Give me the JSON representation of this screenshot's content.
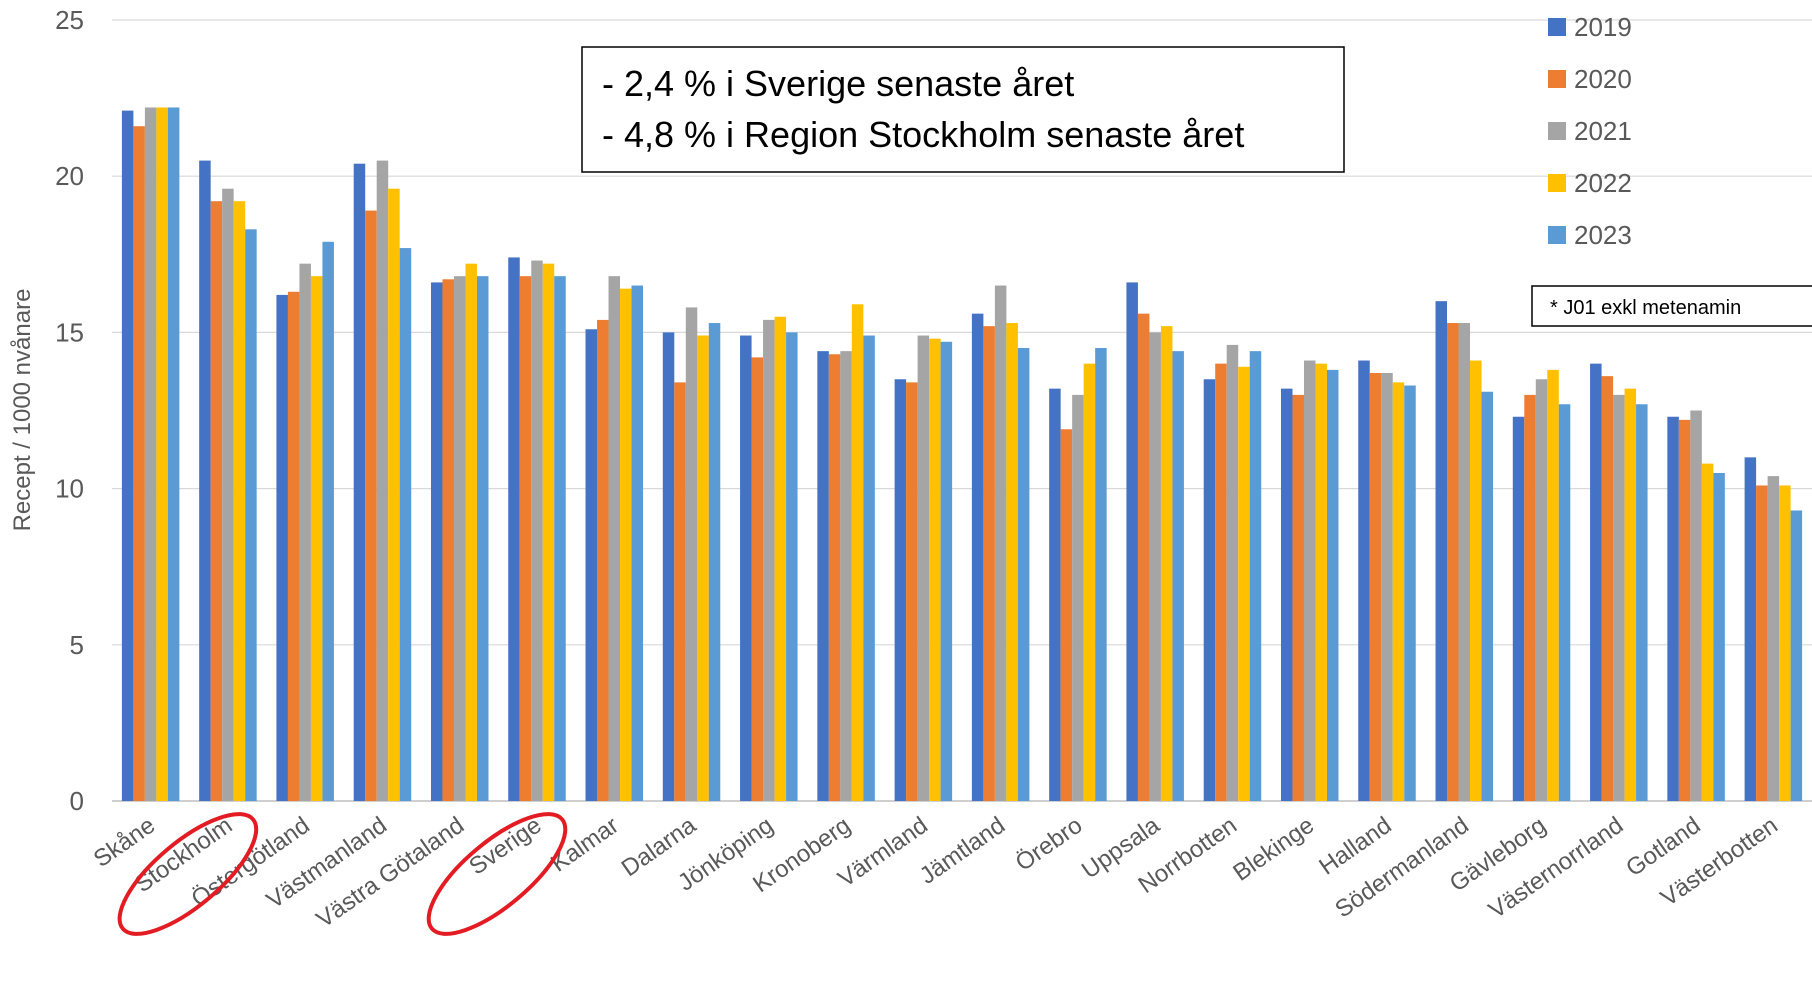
{
  "chart_data": {
    "type": "bar",
    "ylabel": "Recept / 1000 nvånare",
    "ylim": [
      0,
      25
    ],
    "yticks": [
      "0",
      "5",
      "10",
      "15",
      "20",
      "25"
    ],
    "grid": true,
    "legend_position": "top-right",
    "categories": [
      "Skåne",
      "Stockholm",
      "Östergötland",
      "Västmanland",
      "Västra Götaland",
      "Sverige",
      "Kalmar",
      "Dalarna",
      "Jönköping",
      "Kronoberg",
      "Värmland",
      "Jämtland",
      "Örebro",
      "Uppsala",
      "Norrbotten",
      "Blekinge",
      "Halland",
      "Södermanland",
      "Gävleborg",
      "Västernorrland",
      "Gotland",
      "Västerbotten"
    ],
    "series": [
      {
        "name": "2019",
        "color": "#4472C4",
        "values": [
          22.1,
          20.5,
          16.2,
          20.4,
          16.6,
          17.4,
          15.1,
          15.0,
          14.9,
          14.4,
          13.5,
          15.6,
          13.2,
          16.6,
          13.5,
          13.2,
          14.1,
          16.0,
          12.3,
          14.0,
          12.3,
          11.0
        ]
      },
      {
        "name": "2020",
        "color": "#ED7D31",
        "values": [
          21.6,
          19.2,
          16.3,
          18.9,
          16.7,
          16.8,
          15.4,
          13.4,
          14.2,
          14.3,
          13.4,
          15.2,
          11.9,
          15.6,
          14.0,
          13.0,
          13.7,
          15.3,
          13.0,
          13.6,
          12.2,
          10.1
        ]
      },
      {
        "name": "2021",
        "color": "#A5A5A5",
        "values": [
          22.2,
          19.6,
          17.2,
          20.5,
          16.8,
          17.3,
          16.8,
          15.8,
          15.4,
          14.4,
          14.9,
          16.5,
          13.0,
          15.0,
          14.6,
          14.1,
          13.7,
          15.3,
          13.5,
          13.0,
          12.5,
          10.4
        ]
      },
      {
        "name": "2022",
        "color": "#FFC000",
        "values": [
          22.2,
          19.2,
          16.8,
          19.6,
          17.2,
          17.2,
          16.4,
          14.9,
          15.5,
          15.9,
          14.8,
          15.3,
          14.0,
          15.2,
          13.9,
          14.0,
          13.4,
          14.1,
          13.8,
          13.2,
          10.8,
          10.1
        ]
      },
      {
        "name": "2023",
        "color": "#5B9BD5",
        "values": [
          22.2,
          18.3,
          17.9,
          17.7,
          16.8,
          16.8,
          16.5,
          15.3,
          15.0,
          14.9,
          14.7,
          14.5,
          14.5,
          14.4,
          14.4,
          13.8,
          13.3,
          13.1,
          12.7,
          12.7,
          10.5,
          9.3
        ]
      }
    ],
    "annotations": {
      "callout_lines": [
        "- 2,4 % i Sverige senaste året",
        "- 4,8 % i Region Stockholm senaste året"
      ],
      "note": "* J01 exkl metenamin",
      "highlighted_categories": [
        "Stockholm",
        "Sverige"
      ],
      "highlight_color": "#E31B23"
    }
  }
}
